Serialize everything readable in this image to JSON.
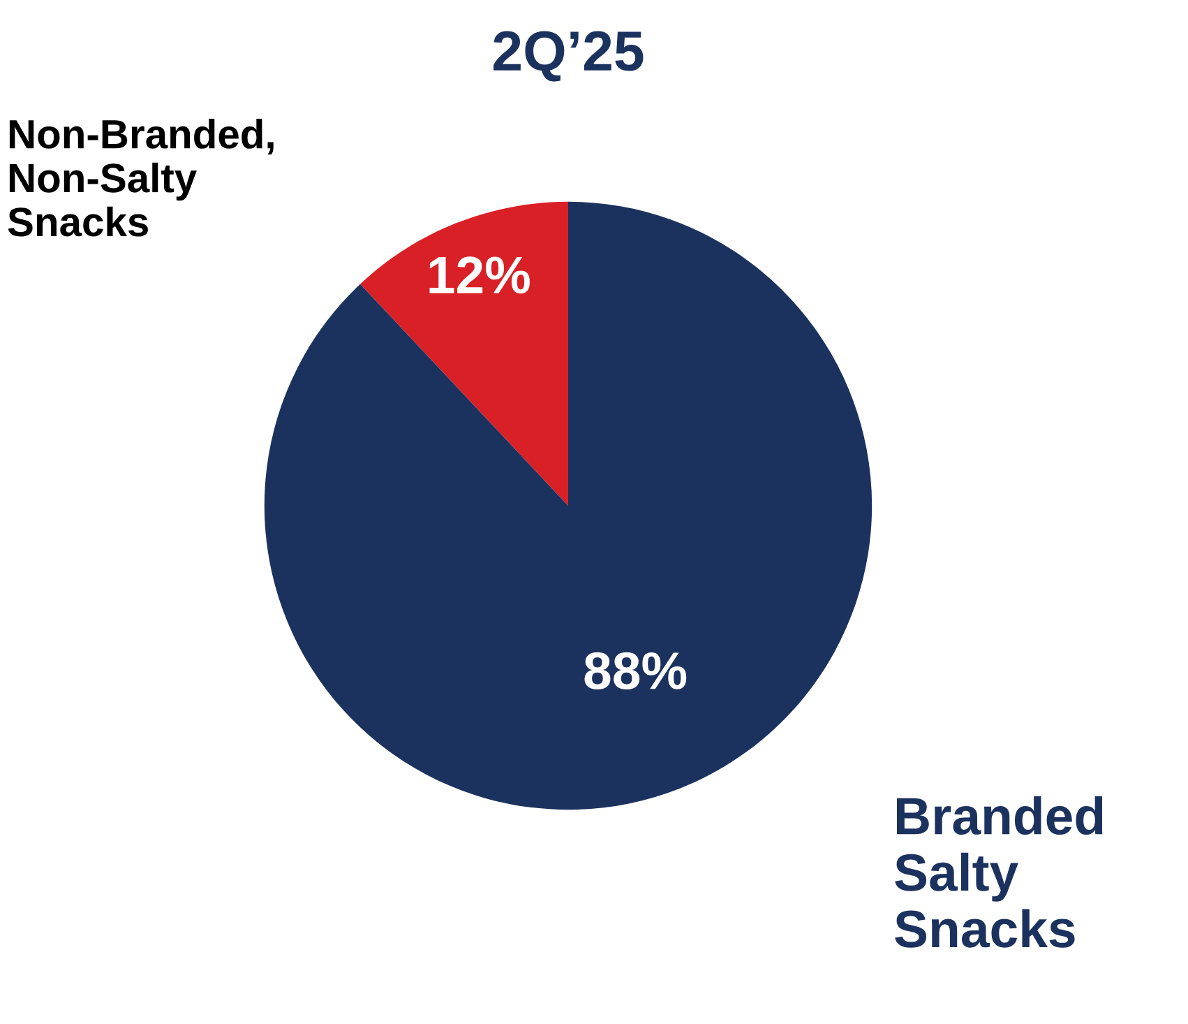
{
  "chart_data": {
    "type": "pie",
    "title": "2Q’25",
    "categories": [
      "Non-Branded,\nNon-Salty\nSnacks",
      "Branded\nSalty\nSnacks"
    ],
    "values": [
      12,
      88
    ],
    "colors": [
      "#d92027",
      "#1c325e"
    ],
    "value_labels": [
      "12%",
      "88%"
    ],
    "legend": false
  }
}
